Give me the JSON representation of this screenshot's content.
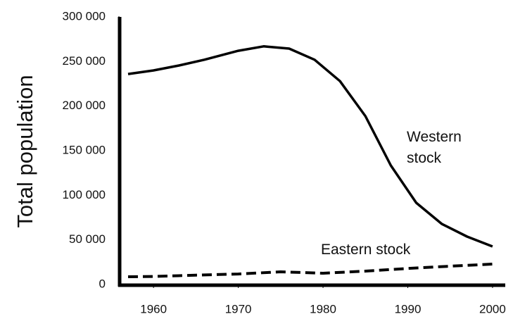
{
  "chart_data": {
    "type": "line",
    "y_label": "Total population",
    "xlim": [
      1956,
      2001.5
    ],
    "xticks": [
      1960,
      1970,
      1980,
      1990,
      2000
    ],
    "ylim": [
      0,
      300000
    ],
    "yticks": [
      0,
      {
        "value": 50000,
        "label": "50 000"
      },
      {
        "value": 100000,
        "label": "100 000"
      },
      {
        "value": 150000,
        "label": "150 000"
      },
      {
        "value": 200000,
        "label": "200 000"
      },
      {
        "value": 250000,
        "label": "250 000"
      },
      {
        "value": 300000,
        "label": "300 000"
      }
    ],
    "series": [
      {
        "name": "Western stock",
        "color": "#000000",
        "dash": false,
        "x": [
          1957,
          1960,
          1963,
          1966,
          1970,
          1973,
          1976,
          1979,
          1982,
          1985,
          1988,
          1991,
          1994,
          1997,
          2000
        ],
        "values": [
          236000,
          240000,
          245500,
          252000,
          262000,
          267000,
          264500,
          252000,
          228000,
          188700,
          133400,
          91600,
          68000,
          53700,
          42600
        ]
      },
      {
        "name": "Eastern stock",
        "color": "#000000",
        "dash": true,
        "x": [
          1957,
          1960,
          1965,
          1970,
          1975,
          1980,
          1985,
          1990,
          1995,
          2000
        ],
        "values": [
          8700,
          9000,
          10500,
          11800,
          14200,
          12600,
          15000,
          18000,
          20500,
          22900
        ]
      }
    ]
  }
}
